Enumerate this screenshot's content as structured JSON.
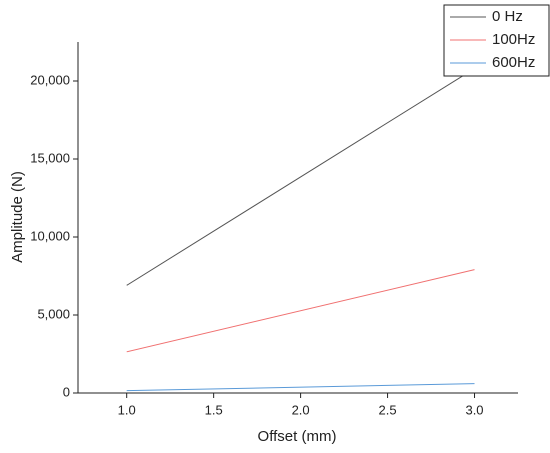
{
  "chart_data": {
    "type": "line",
    "x_label": "Offset (mm)",
    "y_label": "Amplitude (N)",
    "x": [
      1.0,
      3.0
    ],
    "series": [
      {
        "name": "0 Hz",
        "color": "#555555",
        "values": [
          6900,
          20800
        ]
      },
      {
        "name": "100Hz",
        "color": "#f07070",
        "values": [
          2640,
          7910
        ]
      },
      {
        "name": "600Hz",
        "color": "#5a9ad8",
        "values": [
          150,
          600
        ]
      }
    ],
    "xlim": [
      0.72,
      3.25
    ],
    "xticks": [
      {
        "value": 1.0,
        "label": "1.0"
      },
      {
        "value": 1.5,
        "label": "1.5"
      },
      {
        "value": 2.0,
        "label": "2.0"
      },
      {
        "value": 2.5,
        "label": "2.5"
      },
      {
        "value": 3.0,
        "label": "3.0"
      }
    ],
    "ylim": [
      0,
      22500
    ],
    "yticks": [
      0,
      {
        "value": 5000,
        "label": "5,000"
      },
      {
        "value": 10000,
        "label": "10,000"
      },
      {
        "value": 15000,
        "label": "15,000"
      },
      {
        "value": 20000,
        "label": "20,000"
      }
    ],
    "legend": "top-right"
  }
}
